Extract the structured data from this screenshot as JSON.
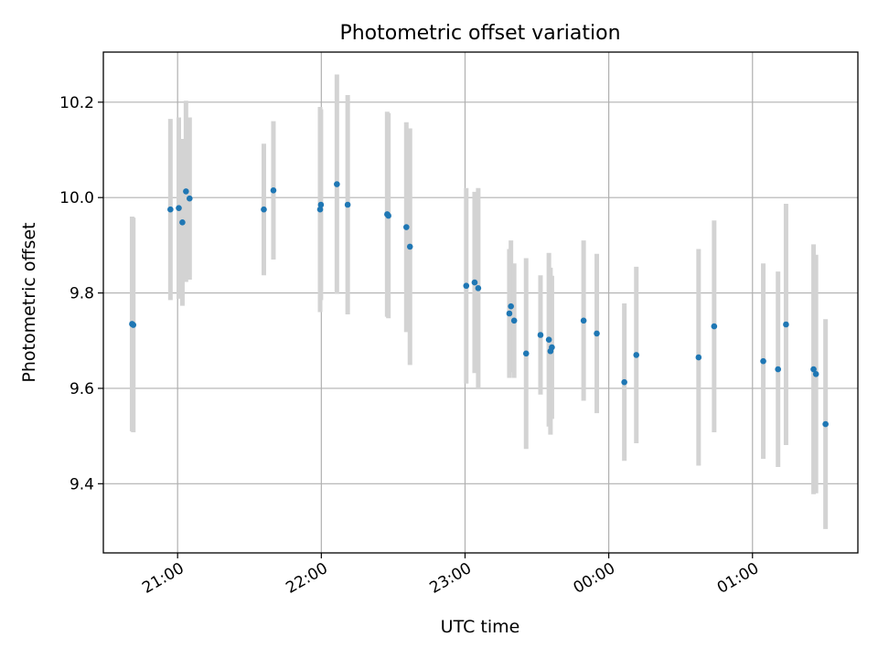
{
  "chart_data": {
    "type": "scatter",
    "title": "Photometric offset variation",
    "xlabel": "UTC time",
    "ylabel": "Photometric offset",
    "x_is_time": true,
    "xlim": [
      "2023-01-01T20:29:00",
      "2023-01-02T01:44:00"
    ],
    "ylim": [
      9.255,
      10.305
    ],
    "x_ticks": [
      {
        "value": "2023-01-01T21:00:00",
        "label": "21:00"
      },
      {
        "value": "2023-01-01T22:00:00",
        "label": "22:00"
      },
      {
        "value": "2023-01-01T23:00:00",
        "label": "23:00"
      },
      {
        "value": "2023-01-02T00:00:00",
        "label": "00:00"
      },
      {
        "value": "2023-01-02T01:00:00",
        "label": "01:00"
      }
    ],
    "y_ticks": [
      {
        "value": 9.4,
        "label": "9.4"
      },
      {
        "value": 9.6,
        "label": "9.6"
      },
      {
        "value": 9.8,
        "label": "9.8"
      },
      {
        "value": 10.0,
        "label": "10.0"
      },
      {
        "value": 10.2,
        "label": "10.2"
      }
    ],
    "grid": true,
    "colors": {
      "points": "#1f77b4",
      "errorbars": "#d3d3d3",
      "grid": "#b0b0b0"
    },
    "points": [
      {
        "x": "2023-01-01T20:41:00",
        "y": 9.735,
        "err": 0.225
      },
      {
        "x": "2023-01-01T20:41:30",
        "y": 9.733,
        "err": 0.225
      },
      {
        "x": "2023-01-01T20:57:00",
        "y": 9.975,
        "err": 0.19
      },
      {
        "x": "2023-01-01T21:00:30",
        "y": 9.978,
        "err": 0.19
      },
      {
        "x": "2023-01-01T21:02:00",
        "y": 9.948,
        "err": 0.175
      },
      {
        "x": "2023-01-01T21:03:30",
        "y": 10.013,
        "err": 0.19
      },
      {
        "x": "2023-01-01T21:05:00",
        "y": 9.998,
        "err": 0.17
      },
      {
        "x": "2023-01-01T21:36:00",
        "y": 9.975,
        "err": 0.138
      },
      {
        "x": "2023-01-01T21:40:00",
        "y": 10.015,
        "err": 0.145
      },
      {
        "x": "2023-01-01T21:59:30",
        "y": 9.975,
        "err": 0.215
      },
      {
        "x": "2023-01-01T21:59:50",
        "y": 9.985,
        "err": 0.2
      },
      {
        "x": "2023-01-01T22:06:30",
        "y": 10.028,
        "err": 0.23
      },
      {
        "x": "2023-01-01T22:11:00",
        "y": 9.985,
        "err": 0.23
      },
      {
        "x": "2023-01-01T22:27:30",
        "y": 9.965,
        "err": 0.215
      },
      {
        "x": "2023-01-01T22:28:00",
        "y": 9.962,
        "err": 0.215
      },
      {
        "x": "2023-01-01T22:35:30",
        "y": 9.938,
        "err": 0.22
      },
      {
        "x": "2023-01-01T22:37:00",
        "y": 9.897,
        "err": 0.248
      },
      {
        "x": "2023-01-01T23:00:30",
        "y": 9.815,
        "err": 0.205
      },
      {
        "x": "2023-01-01T23:04:00",
        "y": 9.822,
        "err": 0.19
      },
      {
        "x": "2023-01-01T23:05:30",
        "y": 9.81,
        "err": 0.21
      },
      {
        "x": "2023-01-01T23:18:30",
        "y": 9.757,
        "err": 0.135
      },
      {
        "x": "2023-01-01T23:19:10",
        "y": 9.772,
        "err": 0.138
      },
      {
        "x": "2023-01-01T23:20:30",
        "y": 9.742,
        "err": 0.12
      },
      {
        "x": "2023-01-01T23:25:30",
        "y": 9.673,
        "err": 0.2
      },
      {
        "x": "2023-01-01T23:31:30",
        "y": 9.712,
        "err": 0.125
      },
      {
        "x": "2023-01-01T23:35:00",
        "y": 9.702,
        "err": 0.182
      },
      {
        "x": "2023-01-01T23:35:40",
        "y": 9.678,
        "err": 0.175
      },
      {
        "x": "2023-01-01T23:36:15",
        "y": 9.686,
        "err": 0.15
      },
      {
        "x": "2023-01-01T23:49:30",
        "y": 9.742,
        "err": 0.168
      },
      {
        "x": "2023-01-01T23:55:00",
        "y": 9.715,
        "err": 0.167
      },
      {
        "x": "2023-01-02T00:06:30",
        "y": 9.613,
        "err": 0.165
      },
      {
        "x": "2023-01-02T00:11:30",
        "y": 9.67,
        "err": 0.185
      },
      {
        "x": "2023-01-02T00:37:30",
        "y": 9.665,
        "err": 0.227
      },
      {
        "x": "2023-01-02T00:44:00",
        "y": 9.73,
        "err": 0.222
      },
      {
        "x": "2023-01-02T01:04:30",
        "y": 9.657,
        "err": 0.205
      },
      {
        "x": "2023-01-02T01:10:40",
        "y": 9.64,
        "err": 0.205
      },
      {
        "x": "2023-01-02T01:14:00",
        "y": 9.734,
        "err": 0.253
      },
      {
        "x": "2023-01-02T01:25:30",
        "y": 9.64,
        "err": 0.262
      },
      {
        "x": "2023-01-02T01:26:30",
        "y": 9.63,
        "err": 0.25
      },
      {
        "x": "2023-01-02T01:30:30",
        "y": 9.525,
        "err": 0.22
      }
    ]
  }
}
